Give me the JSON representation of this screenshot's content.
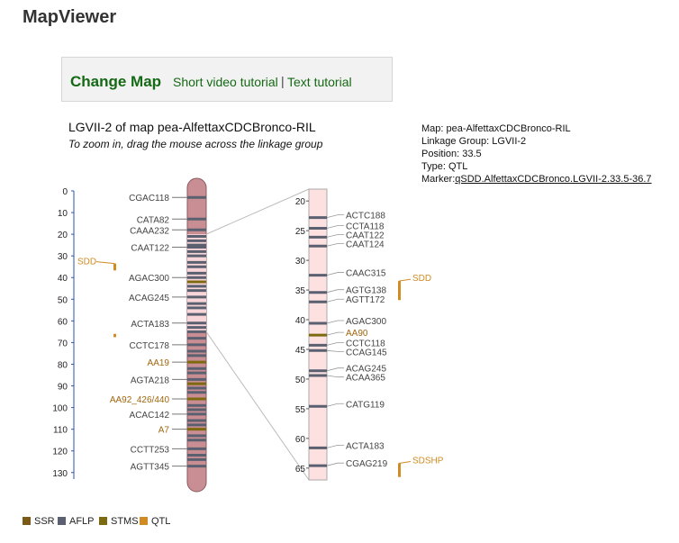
{
  "app": {
    "title": "MapViewer"
  },
  "toolbar": {
    "change_map": "Change Map",
    "video_tutorial": "Short video tutorial",
    "separator": "|",
    "text_tutorial": "Text tutorial"
  },
  "map": {
    "heading": "LGVII-2 of map pea-AlfettaxCDCBronco-RIL",
    "hint": "To zoom in, drag the mouse across the linkage group"
  },
  "info": {
    "map": "Map: pea-AlfettaxCDCBronco-RIL",
    "group": "Linkage Group: LGVII-2",
    "position": "Position: 33.5",
    "type": "Type: QTL",
    "marker_prefix": "Marker:",
    "marker_link": "qSDD.AlfettaxCDCBronco.LGVII-2.33.5-36.7"
  },
  "colors": {
    "SSR": "#7a5a16",
    "AFLP": "#5a6070",
    "STMS": "#7d6a10",
    "QTL": "#d08b22",
    "left_chrom": "#c98e93",
    "zoom_chrom": "#fde1e1",
    "selection": "#f8d5d8"
  },
  "overview": {
    "axis_ticks": [
      0,
      10,
      20,
      30,
      40,
      50,
      60,
      70,
      80,
      90,
      100,
      110,
      120,
      130
    ],
    "range": [
      0,
      133
    ],
    "selection": [
      20,
      65
    ],
    "markers": [
      {
        "name": "CGAC118",
        "pos": 3,
        "type": "AFLP",
        "label": true
      },
      {
        "name": "CATA82",
        "pos": 13,
        "type": "AFLP",
        "label": true
      },
      {
        "name": "CAAA232",
        "pos": 18,
        "type": "AFLP",
        "label": true
      },
      {
        "name": "CAAT122",
        "pos": 26,
        "type": "AFLP",
        "label": true
      },
      {
        "name": "AGAC300",
        "pos": 40,
        "type": "AFLP",
        "label": true
      },
      {
        "name": "ACAG245",
        "pos": 49,
        "type": "AFLP",
        "label": true
      },
      {
        "name": "ACTA183",
        "pos": 61,
        "type": "AFLP",
        "label": true
      },
      {
        "name": "CCTC178",
        "pos": 71,
        "type": "AFLP",
        "label": true
      },
      {
        "name": "AA19",
        "pos": 79,
        "type": "STMS",
        "label": true
      },
      {
        "name": "AGTA218",
        "pos": 87,
        "type": "AFLP",
        "label": true
      },
      {
        "name": "AA92_426/440",
        "pos": 96,
        "type": "STMS",
        "label": true
      },
      {
        "name": "ACAC142",
        "pos": 103,
        "type": "AFLP",
        "label": true
      },
      {
        "name": "A7",
        "pos": 110,
        "type": "STMS",
        "label": true
      },
      {
        "name": "CCTT253",
        "pos": 119,
        "type": "AFLP",
        "label": true
      },
      {
        "name": "AGTT345",
        "pos": 127,
        "type": "AFLP",
        "label": true
      },
      {
        "name": "",
        "pos": 21,
        "type": "AFLP"
      },
      {
        "name": "",
        "pos": 23,
        "type": "AFLP"
      },
      {
        "name": "",
        "pos": 25,
        "type": "AFLP"
      },
      {
        "name": "",
        "pos": 28,
        "type": "AFLP"
      },
      {
        "name": "",
        "pos": 30,
        "type": "AFLP"
      },
      {
        "name": "",
        "pos": 33,
        "type": "AFLP"
      },
      {
        "name": "",
        "pos": 35,
        "type": "AFLP"
      },
      {
        "name": "",
        "pos": 38,
        "type": "AFLP"
      },
      {
        "name": "",
        "pos": 42,
        "type": "STMS"
      },
      {
        "name": "",
        "pos": 44,
        "type": "AFLP"
      },
      {
        "name": "",
        "pos": 46,
        "type": "AFLP"
      },
      {
        "name": "",
        "pos": 52,
        "type": "AFLP"
      },
      {
        "name": "",
        "pos": 54,
        "type": "AFLP"
      },
      {
        "name": "",
        "pos": 57,
        "type": "AFLP"
      },
      {
        "name": "",
        "pos": 63,
        "type": "AFLP"
      },
      {
        "name": "",
        "pos": 65,
        "type": "AFLP"
      },
      {
        "name": "",
        "pos": 68,
        "type": "AFLP"
      },
      {
        "name": "",
        "pos": 74,
        "type": "AFLP"
      },
      {
        "name": "",
        "pos": 76,
        "type": "AFLP"
      },
      {
        "name": "",
        "pos": 82,
        "type": "AFLP"
      },
      {
        "name": "",
        "pos": 84,
        "type": "AFLP"
      },
      {
        "name": "",
        "pos": 89,
        "type": "STMS"
      },
      {
        "name": "",
        "pos": 91,
        "type": "AFLP"
      },
      {
        "name": "",
        "pos": 93,
        "type": "AFLP"
      },
      {
        "name": "",
        "pos": 99,
        "type": "AFLP"
      },
      {
        "name": "",
        "pos": 101,
        "type": "AFLP"
      },
      {
        "name": "",
        "pos": 106,
        "type": "AFLP"
      },
      {
        "name": "",
        "pos": 108,
        "type": "AFLP"
      },
      {
        "name": "",
        "pos": 113,
        "type": "AFLP"
      },
      {
        "name": "",
        "pos": 115,
        "type": "AFLP"
      },
      {
        "name": "",
        "pos": 122,
        "type": "AFLP"
      },
      {
        "name": "",
        "pos": 124,
        "type": "AFLP"
      }
    ],
    "qtls": [
      {
        "name": "SDD",
        "start": 33.5,
        "end": 36.7
      },
      {
        "name": "",
        "start": 66,
        "end": 67.5
      }
    ]
  },
  "zoom": {
    "axis_ticks": [
      20,
      25,
      30,
      35,
      40,
      45,
      50,
      55,
      60,
      65
    ],
    "range": [
      18,
      67
    ],
    "markers": [
      {
        "name": "ACTC188",
        "pos": 22.8,
        "type": "AFLP"
      },
      {
        "name": "CCTA118",
        "pos": 24.6,
        "type": "AFLP"
      },
      {
        "name": "CAAT122",
        "pos": 26.1,
        "type": "AFLP"
      },
      {
        "name": "CAAT124",
        "pos": 27.6,
        "type": "AFLP"
      },
      {
        "name": "CAAC315",
        "pos": 32.5,
        "type": "AFLP"
      },
      {
        "name": "AGTG138",
        "pos": 35.4,
        "type": "AFLP"
      },
      {
        "name": "AGTT172",
        "pos": 37.0,
        "type": "AFLP"
      },
      {
        "name": "AGAC300",
        "pos": 40.6,
        "type": "AFLP"
      },
      {
        "name": "AA90",
        "pos": 42.6,
        "type": "STMS"
      },
      {
        "name": "CCTC118",
        "pos": 44.3,
        "type": "AFLP"
      },
      {
        "name": "CCAG145",
        "pos": 45.2,
        "type": "AFLP"
      },
      {
        "name": "ACAG245",
        "pos": 48.6,
        "type": "AFLP"
      },
      {
        "name": "ACAA365",
        "pos": 49.4,
        "type": "AFLP"
      },
      {
        "name": "CATG119",
        "pos": 54.6,
        "type": "AFLP"
      },
      {
        "name": "ACTA183",
        "pos": 61.6,
        "type": "AFLP"
      },
      {
        "name": "CGAG219",
        "pos": 64.6,
        "type": "AFLP"
      }
    ],
    "qtls": [
      {
        "name": "SDD",
        "start": 33.5,
        "end": 36.7
      },
      {
        "name": "SDSHP",
        "start": 64.2,
        "end": 66.5
      }
    ]
  },
  "legend": [
    {
      "label": "SSR",
      "type": "SSR"
    },
    {
      "label": "AFLP",
      "type": "AFLP"
    },
    {
      "label": "STMS",
      "type": "STMS"
    },
    {
      "label": "QTL",
      "type": "QTL"
    }
  ]
}
